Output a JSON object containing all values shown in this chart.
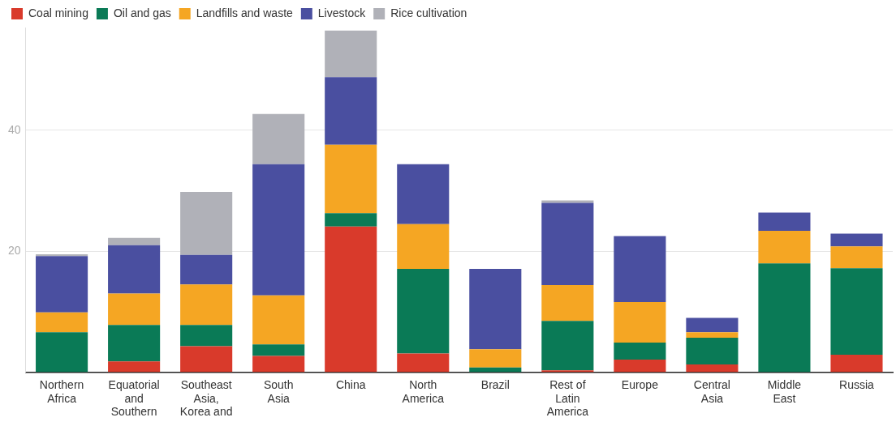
{
  "chart_data": {
    "type": "bar",
    "stacked": true,
    "categories": [
      "Northern Africa",
      "Equatorial and Southern",
      "Southeast Asia, Korea and",
      "South Asia",
      "China",
      "North America",
      "Brazil",
      "Rest of Latin America",
      "Europe",
      "Central Asia",
      "Middle East",
      "Russia"
    ],
    "series": [
      {
        "name": "Coal mining",
        "color": "#d93a2b",
        "values": [
          0,
          1.8,
          4.3,
          2.7,
          24.1,
          3.1,
          0,
          0.3,
          2.1,
          1.3,
          0,
          2.9
        ]
      },
      {
        "name": "Oil and gas",
        "color": "#0a7a56",
        "values": [
          6.6,
          6.0,
          3.5,
          1.9,
          2.2,
          14.0,
          0.8,
          8.2,
          2.8,
          4.4,
          18.0,
          14.3
        ]
      },
      {
        "name": "Landfills and waste",
        "color": "#f5a623",
        "values": [
          3.3,
          5.2,
          6.7,
          8.1,
          11.3,
          7.4,
          3.0,
          5.9,
          6.7,
          0.9,
          5.4,
          3.6
        ]
      },
      {
        "name": "Livestock",
        "color": "#4a4fa0",
        "values": [
          9.3,
          8.0,
          4.9,
          21.7,
          11.2,
          9.9,
          13.3,
          13.6,
          10.9,
          2.4,
          3.0,
          2.1
        ]
      },
      {
        "name": "Rice cultivation",
        "color": "#b0b1b8",
        "values": [
          0.3,
          1.2,
          10.4,
          8.3,
          7.7,
          0,
          0,
          0.4,
          0,
          0,
          0,
          0
        ]
      }
    ],
    "ylim": [
      0,
      57
    ],
    "yticks": [
      20,
      40
    ],
    "grid": "y",
    "legend": "top left"
  }
}
